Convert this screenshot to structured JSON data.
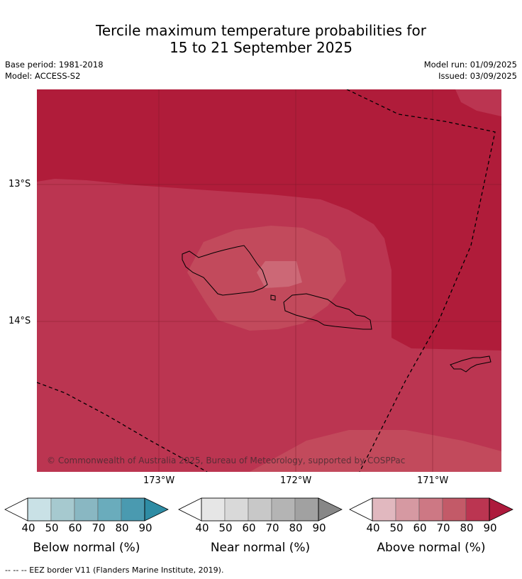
{
  "title_line1": "Tercile maximum temperature probabilities for",
  "title_line2": "15 to 21 September 2025",
  "base_period": "Base period: 1981-2018",
  "model": "Model: ACCESS-S2",
  "model_run": "Model run: 01/09/2025",
  "issued": "Issued: 03/09/2025",
  "map": {
    "lat_labels": [
      "13°S",
      "14°S"
    ],
    "lon_labels": [
      "173°W",
      "172°W",
      "171°W"
    ],
    "copyright": "© Commonwealth of Australia 2025, Bureau of Meteorology, supported by COSPPac"
  },
  "colorbars": [
    {
      "title": "Below normal (%)",
      "ticks": [
        "40",
        "50",
        "60",
        "70",
        "80",
        "90"
      ],
      "colors": [
        "#ffffff",
        "#c9e1e6",
        "#a6c9cf",
        "#89b7c2",
        "#6aacbc",
        "#4a9ab0",
        "#2e8ca4"
      ]
    },
    {
      "title": "Near normal (%)",
      "ticks": [
        "40",
        "50",
        "60",
        "70",
        "80",
        "90"
      ],
      "colors": [
        "#ffffff",
        "#e6e6e6",
        "#d9d9d9",
        "#c8c8c8",
        "#b4b4b4",
        "#a1a1a1",
        "#878787"
      ]
    },
    {
      "title": "Above normal (%)",
      "ticks": [
        "40",
        "50",
        "60",
        "70",
        "80",
        "90"
      ],
      "colors": [
        "#ffffff",
        "#e1b8bf",
        "#d699a2",
        "#cd7884",
        "#c35a68",
        "#bb3551",
        "#ad1a3c"
      ]
    }
  ],
  "footnote": "-- -- -- EEZ border V11 (Flanders Marine Institute, 2019)."
}
